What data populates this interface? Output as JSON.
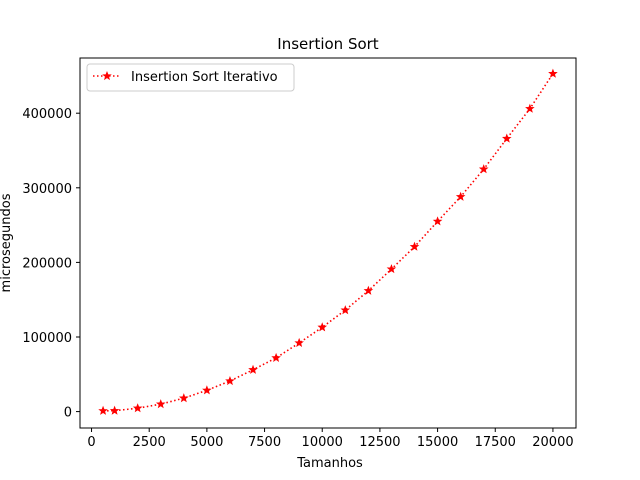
{
  "chart_data": {
    "type": "line",
    "title": "Insertion Sort",
    "xlabel": "Tamanhos",
    "ylabel": "microsegundos",
    "xlim": [
      -500,
      21000
    ],
    "ylim": [
      -22000,
      474000
    ],
    "xticks": [
      0,
      2500,
      5000,
      7500,
      10000,
      12500,
      15000,
      17500,
      20000
    ],
    "yticks": [
      0,
      100000,
      200000,
      300000,
      400000
    ],
    "grid": false,
    "legend_position": "top-left",
    "series": [
      {
        "name": "Insertion Sort Iterativo",
        "color": "#ff0000",
        "line_style": "dotted",
        "marker": "star",
        "x": [
          500,
          1000,
          2000,
          3000,
          4000,
          5000,
          6000,
          7000,
          8000,
          9000,
          10000,
          11000,
          12000,
          13000,
          14000,
          15000,
          16000,
          17000,
          18000,
          19000,
          20000
        ],
        "y": [
          1000,
          1200,
          4500,
          10000,
          18000,
          28500,
          41000,
          56000,
          72000,
          92000,
          113000,
          136000,
          162000,
          191000,
          221000,
          255000,
          288000,
          325000,
          366000,
          406000,
          453000
        ]
      }
    ]
  }
}
